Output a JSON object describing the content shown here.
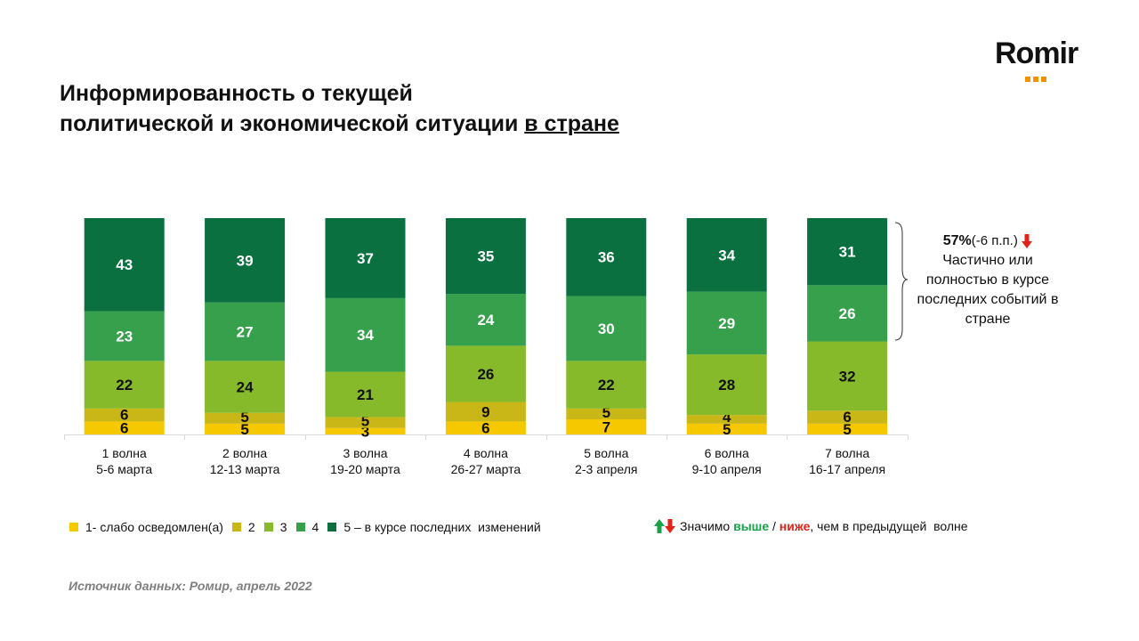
{
  "logo": {
    "text": "Romir"
  },
  "title": {
    "line1": "Информированность о текущей",
    "line2_prefix": "политической и экономической ситуации ",
    "line2_underlined": "в стране"
  },
  "annotation": {
    "value": "57%",
    "change": "(-6 п.п.)",
    "text": "Частично или полностью в курсе последних событий в стране",
    "arrow": "down-arrow-red"
  },
  "legend": {
    "items": [
      {
        "label": "1- слабо осведомлен(а)",
        "color": "#f5c800"
      },
      {
        "label": "2",
        "color": "#c8b716"
      },
      {
        "label": "3",
        "color": "#86ba2a"
      },
      {
        "label": "4",
        "color": "#36a04d"
      },
      {
        "label": "5 – в курсе последних  изменений",
        "color": "#0a7040"
      }
    ]
  },
  "significance": {
    "prefix": "Значимо ",
    "higher": "выше",
    "sep": " / ",
    "lower": "ниже",
    "suffix": ", чем в предыдущей  волне"
  },
  "source": "Источник данных: Ромир, апрель 2022",
  "chart_data": {
    "type": "bar",
    "stacked": true,
    "percent_stacked": true,
    "categories": [
      [
        "1 волна",
        "5-6 марта"
      ],
      [
        "2 волна",
        "12-13 марта"
      ],
      [
        "3 волна",
        "19-20 марта"
      ],
      [
        "4 волна",
        "26-27 марта"
      ],
      [
        "5 волна",
        "2-3 апреля"
      ],
      [
        "6 волна",
        "9-10 апреля"
      ],
      [
        "7 волна",
        "16-17 апреля"
      ]
    ],
    "series": [
      {
        "name": "1- слабо осведомлен(а)",
        "color": "#f5c800",
        "values": [
          6,
          5,
          3,
          6,
          7,
          5,
          5
        ]
      },
      {
        "name": "2",
        "color": "#c8b716",
        "values": [
          6,
          5,
          5,
          9,
          5,
          4,
          6
        ]
      },
      {
        "name": "3",
        "color": "#86ba2a",
        "values": [
          22,
          24,
          21,
          26,
          22,
          28,
          32
        ]
      },
      {
        "name": "4",
        "color": "#36a04d",
        "values": [
          23,
          27,
          34,
          24,
          30,
          29,
          26
        ]
      },
      {
        "name": "5 – в курсе последних  изменений",
        "color": "#0a7040",
        "values": [
          43,
          39,
          37,
          35,
          36,
          34,
          31
        ]
      }
    ]
  }
}
